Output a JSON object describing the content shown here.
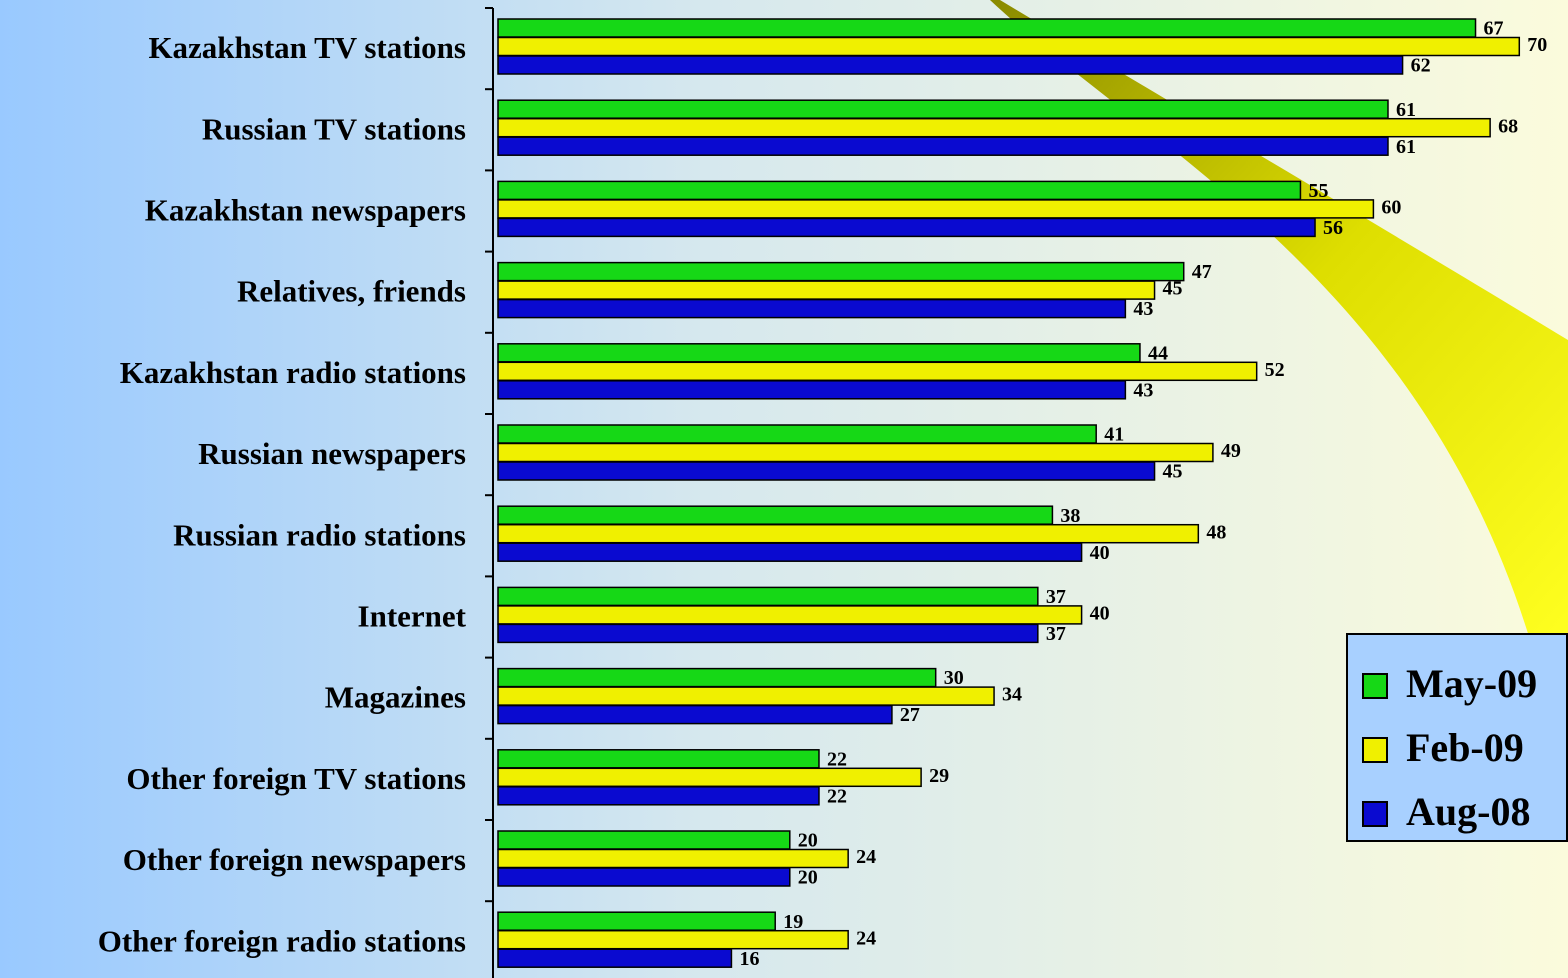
{
  "chart_data": {
    "type": "bar",
    "orientation": "horizontal",
    "categories": [
      "Kazakhstan TV stations",
      "Russian TV stations",
      "Kazakhstan newspapers",
      "Relatives, friends",
      "Kazakhstan radio stations",
      "Russian newspapers",
      "Russian radio stations",
      "Internet",
      "Magazines",
      "Other foreign TV stations",
      "Other foreign newspapers",
      "Other foreign radio stations"
    ],
    "series": [
      {
        "name": "May-09",
        "color": "#16d816",
        "values": [
          67,
          61,
          55,
          47,
          44,
          41,
          38,
          37,
          30,
          22,
          20,
          19
        ]
      },
      {
        "name": "Feb-09",
        "color": "#f0f000",
        "values": [
          70,
          68,
          60,
          45,
          52,
          49,
          48,
          40,
          34,
          29,
          24,
          24
        ]
      },
      {
        "name": "Aug-08",
        "color": "#0a0ad0",
        "values": [
          62,
          61,
          56,
          43,
          43,
          45,
          40,
          37,
          27,
          22,
          20,
          16
        ]
      }
    ],
    "legend": "right"
  }
}
